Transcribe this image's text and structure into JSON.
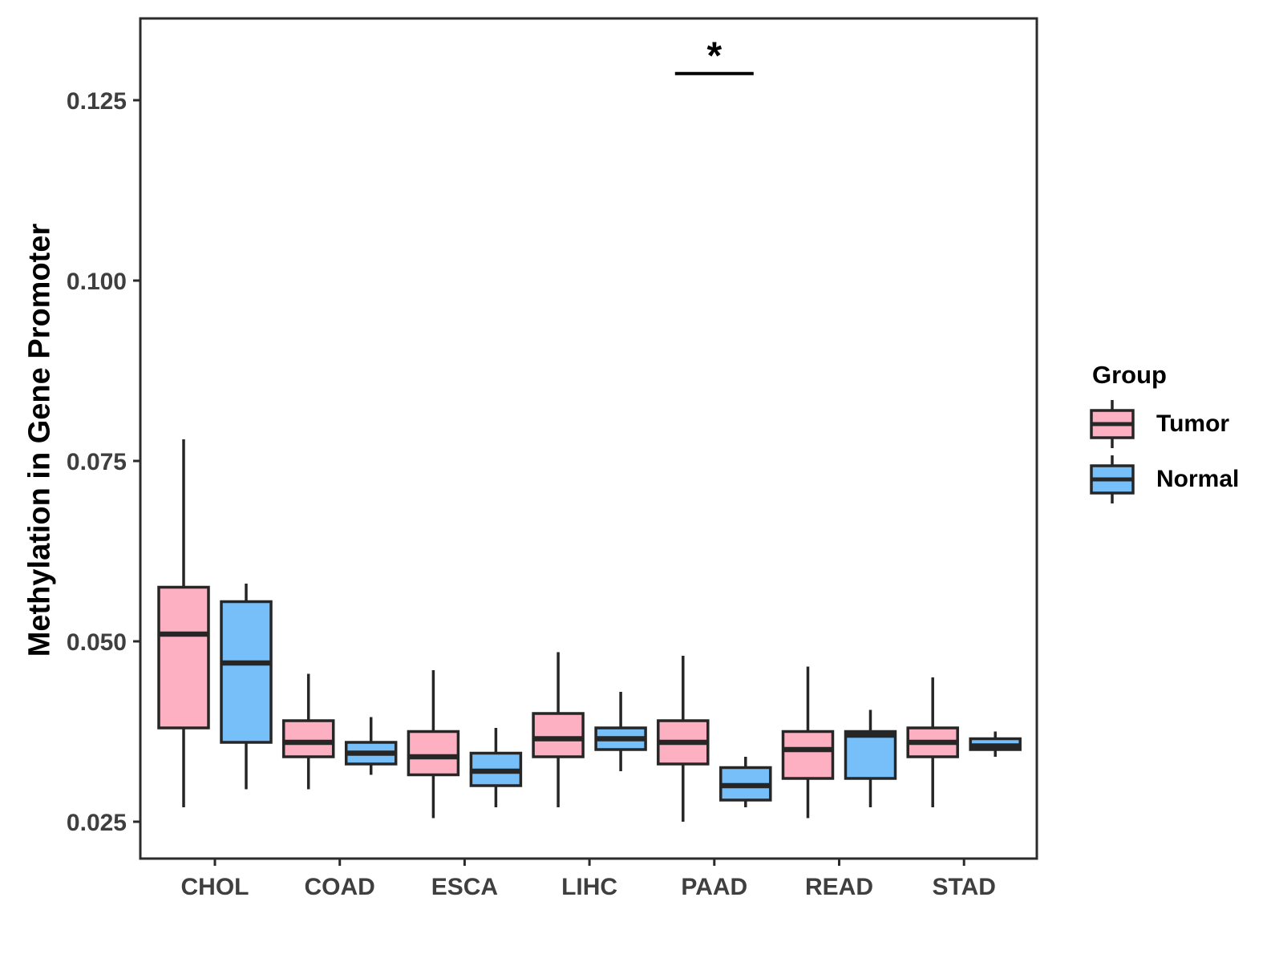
{
  "chart_data": {
    "type": "boxplot",
    "title": "",
    "xlabel": "",
    "ylabel": "Methylation in Gene Promoter",
    "categories": [
      "CHOL",
      "COAD",
      "ESCA",
      "LIHC",
      "PAAD",
      "READ",
      "STAD"
    ],
    "y_ticks": [
      0.025,
      0.05,
      0.075,
      0.1,
      0.125
    ],
    "y_tick_labels": [
      "0.025",
      "0.050",
      "0.075",
      "0.100",
      "0.125"
    ],
    "ylim": [
      0.0199,
      0.1363
    ],
    "grid": false,
    "legend_position": "right",
    "legend": {
      "title": "Group",
      "entries": [
        {
          "label": "Tumor",
          "color": "#FCB0C1"
        },
        {
          "label": "Normal",
          "color": "#76BFF9"
        }
      ]
    },
    "colors": {
      "tumor_fill": "#FCB0C1",
      "normal_fill": "#76BFF9",
      "box_border": "#262626",
      "tick_label": "#3F3F3F",
      "axis_line": "#2B2B2B"
    },
    "series": [
      {
        "name": "Tumor",
        "color": "#FCB0C1",
        "boxes": [
          {
            "category": "CHOL",
            "whisker_low": 0.027,
            "q1": 0.038,
            "median": 0.051,
            "q3": 0.0575,
            "whisker_high": 0.078
          },
          {
            "category": "COAD",
            "whisker_low": 0.0295,
            "q1": 0.034,
            "median": 0.036,
            "q3": 0.039,
            "whisker_high": 0.0455
          },
          {
            "category": "ESCA",
            "whisker_low": 0.0255,
            "q1": 0.0315,
            "median": 0.034,
            "q3": 0.0375,
            "whisker_high": 0.046
          },
          {
            "category": "LIHC",
            "whisker_low": 0.027,
            "q1": 0.034,
            "median": 0.0365,
            "q3": 0.04,
            "whisker_high": 0.0485
          },
          {
            "category": "PAAD",
            "whisker_low": 0.025,
            "q1": 0.033,
            "median": 0.036,
            "q3": 0.039,
            "whisker_high": 0.048
          },
          {
            "category": "READ",
            "whisker_low": 0.0255,
            "q1": 0.031,
            "median": 0.035,
            "q3": 0.0375,
            "whisker_high": 0.0465
          },
          {
            "category": "STAD",
            "whisker_low": 0.027,
            "q1": 0.034,
            "median": 0.036,
            "q3": 0.038,
            "whisker_high": 0.045
          }
        ]
      },
      {
        "name": "Normal",
        "color": "#76BFF9",
        "boxes": [
          {
            "category": "CHOL",
            "whisker_low": 0.0295,
            "q1": 0.036,
            "median": 0.047,
            "q3": 0.0555,
            "whisker_high": 0.058
          },
          {
            "category": "COAD",
            "whisker_low": 0.0315,
            "q1": 0.033,
            "median": 0.0345,
            "q3": 0.036,
            "whisker_high": 0.0395
          },
          {
            "category": "ESCA",
            "whisker_low": 0.027,
            "q1": 0.03,
            "median": 0.032,
            "q3": 0.0345,
            "whisker_high": 0.038
          },
          {
            "category": "LIHC",
            "whisker_low": 0.032,
            "q1": 0.035,
            "median": 0.0365,
            "q3": 0.038,
            "whisker_high": 0.043
          },
          {
            "category": "PAAD",
            "whisker_low": 0.027,
            "q1": 0.028,
            "median": 0.03,
            "q3": 0.0325,
            "whisker_high": 0.034
          },
          {
            "category": "READ",
            "whisker_low": 0.027,
            "q1": 0.031,
            "median": 0.037,
            "q3": 0.0375,
            "whisker_high": 0.0405
          },
          {
            "category": "STAD",
            "whisker_low": 0.034,
            "q1": 0.035,
            "median": 0.0355,
            "q3": 0.0365,
            "whisker_high": 0.0375
          }
        ]
      }
    ],
    "significance": [
      {
        "category": "PAAD",
        "label": "*",
        "bar_y": 0.1287
      }
    ]
  }
}
